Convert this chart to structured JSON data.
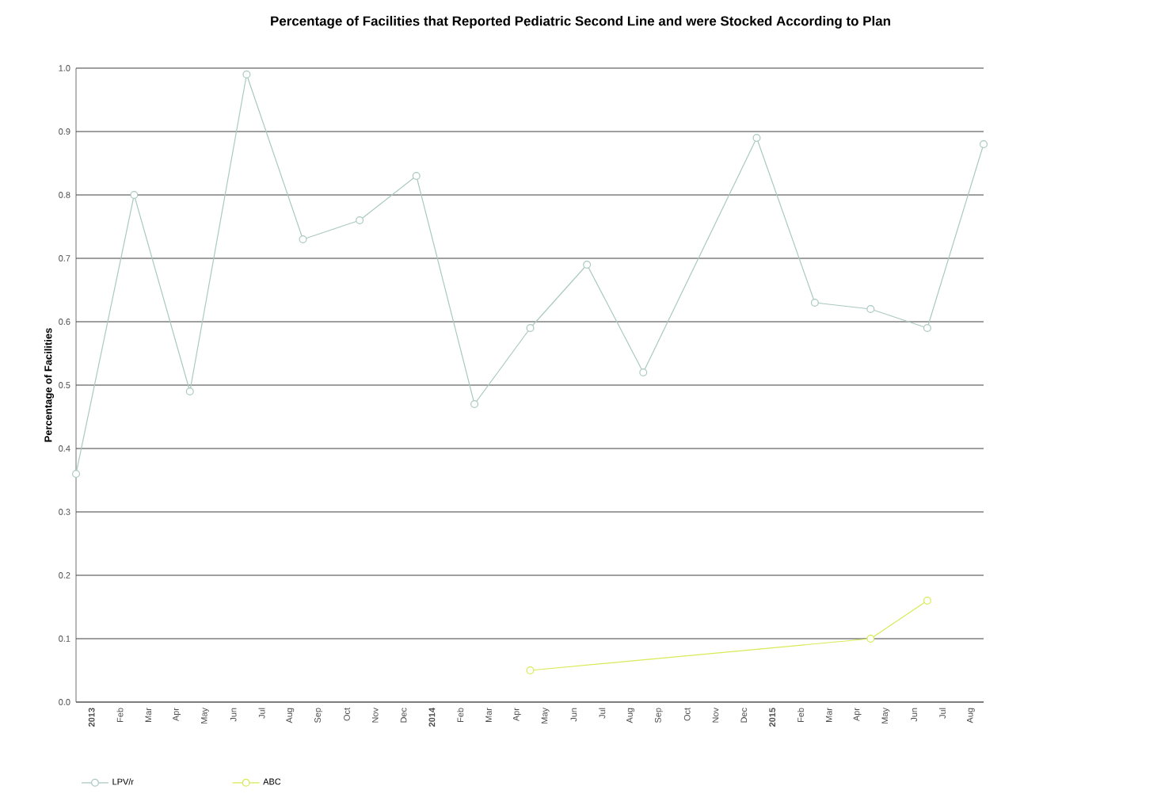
{
  "chart_data": {
    "type": "line",
    "title": "Percentage of Facilities that Reported Pediatric Second Line and were Stocked According to Plan",
    "ylabel": "Percentage of Facilities",
    "xlim": [
      "2012-12-15",
      "2015-08-15"
    ],
    "xticks": [
      {
        "value": "2013-01-01",
        "label": "2013"
      },
      {
        "value": "2013-02-01",
        "label": "Feb"
      },
      {
        "value": "2013-03-01",
        "label": "Mar"
      },
      {
        "value": "2013-04-01",
        "label": "Apr"
      },
      {
        "value": "2013-05-01",
        "label": "May"
      },
      {
        "value": "2013-06-01",
        "label": "Jun"
      },
      {
        "value": "2013-07-01",
        "label": "Jul"
      },
      {
        "value": "2013-08-01",
        "label": "Aug"
      },
      {
        "value": "2013-09-01",
        "label": "Sep"
      },
      {
        "value": "2013-10-01",
        "label": "Oct"
      },
      {
        "value": "2013-11-01",
        "label": "Nov"
      },
      {
        "value": "2013-12-01",
        "label": "Dec"
      },
      {
        "value": "2014-01-01",
        "label": "2014"
      },
      {
        "value": "2014-02-01",
        "label": "Feb"
      },
      {
        "value": "2014-03-01",
        "label": "Mar"
      },
      {
        "value": "2014-04-01",
        "label": "Apr"
      },
      {
        "value": "2014-05-01",
        "label": "May"
      },
      {
        "value": "2014-06-01",
        "label": "Jun"
      },
      {
        "value": "2014-07-01",
        "label": "Jul"
      },
      {
        "value": "2014-08-01",
        "label": "Aug"
      },
      {
        "value": "2014-09-01",
        "label": "Sep"
      },
      {
        "value": "2014-10-01",
        "label": "Oct"
      },
      {
        "value": "2014-11-01",
        "label": "Nov"
      },
      {
        "value": "2014-12-01",
        "label": "Dec"
      },
      {
        "value": "2015-01-01",
        "label": "2015"
      },
      {
        "value": "2015-02-01",
        "label": "Feb"
      },
      {
        "value": "2015-03-01",
        "label": "Mar"
      },
      {
        "value": "2015-04-01",
        "label": "Apr"
      },
      {
        "value": "2015-05-01",
        "label": "May"
      },
      {
        "value": "2015-06-01",
        "label": "Jun"
      },
      {
        "value": "2015-07-01",
        "label": "Jul"
      },
      {
        "value": "2015-08-01",
        "label": "Aug"
      }
    ],
    "ylim": [
      0,
      1
    ],
    "yticks": [
      {
        "value": 0,
        "label": "0.0"
      },
      0.1,
      0.2,
      0.3,
      0.4,
      0.5,
      0.6,
      0.7,
      0.8,
      0.9,
      {
        "value": 1,
        "label": "1.0"
      }
    ],
    "grid": "y",
    "legend": "bottom",
    "marker": "circle",
    "line_style": "solid",
    "series": [
      {
        "name": "LPV/r",
        "color": "#a9c9c1",
        "x": [
          "2012-12-15",
          "2013-02-15",
          "2013-04-15",
          "2013-06-15",
          "2013-08-15",
          "2013-10-15",
          "2013-12-15",
          "2014-02-15",
          "2014-04-15",
          "2014-06-15",
          "2014-08-15",
          "2014-12-15",
          "2015-02-15",
          "2015-04-15",
          "2015-06-15",
          "2015-08-15"
        ],
        "values": [
          0.36,
          0.8,
          0.49,
          0.99,
          0.73,
          0.76,
          0.83,
          0.47,
          0.59,
          0.69,
          0.52,
          0.89,
          0.63,
          0.62,
          0.59,
          0.88
        ]
      },
      {
        "name": "ABC",
        "color": "#d8ea55",
        "x": [
          "2014-04-15",
          "2015-04-15",
          "2015-06-15"
        ],
        "values": [
          0.05,
          0.1,
          0.16
        ]
      }
    ]
  }
}
